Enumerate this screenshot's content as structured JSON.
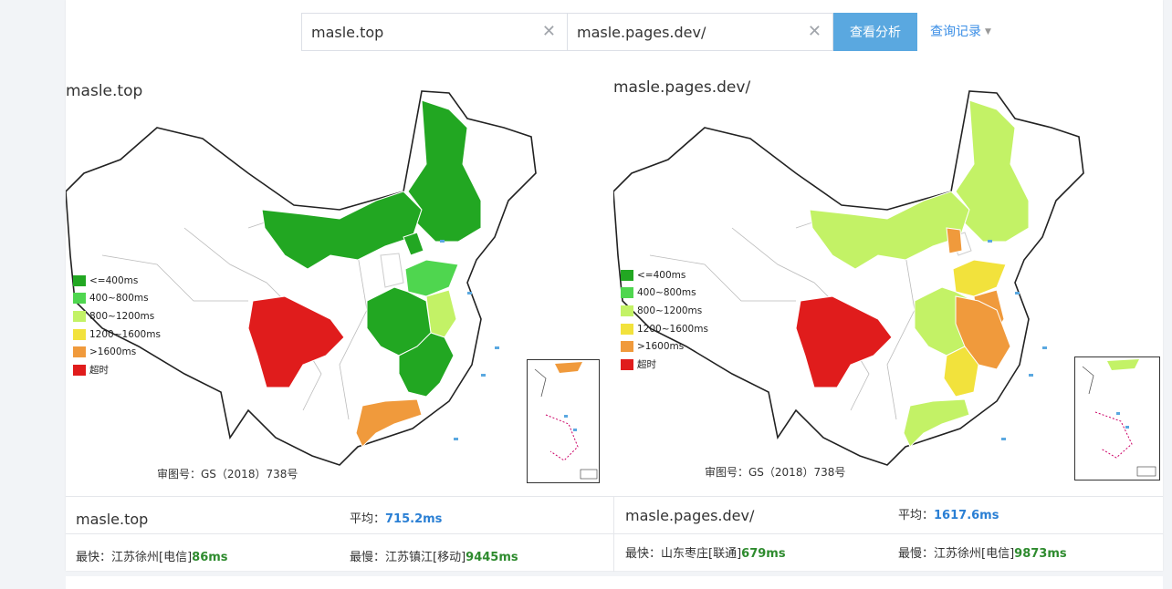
{
  "search": {
    "site_a": "masle.top",
    "site_b": "masle.pages.dev/",
    "clear_icon": "close-icon",
    "analyze_label": "查看分析",
    "history_label": "查询记录"
  },
  "colors": {
    "lt400": "#22a722",
    "400_800": "#4fd64f",
    "800_1200": "#c3f266",
    "1200_1600": "#f2e23c",
    "gt1600": "#f09a3c",
    "timeout": "#e01c1c",
    "button": "#5aa8e0"
  },
  "legend": [
    {
      "label": "<=400ms",
      "color": "#22a722"
    },
    {
      "label": "400~800ms",
      "color": "#4fd64f"
    },
    {
      "label": "800~1200ms",
      "color": "#c3f266"
    },
    {
      "label": "1200~1600ms",
      "color": "#f2e23c"
    },
    {
      "label": ">1600ms",
      "color": "#f09a3c"
    },
    {
      "label": "超时",
      "color": "#e01c1c"
    }
  ],
  "maps": [
    {
      "title": "masle.top",
      "approval": "审图号：GS（2018）738号",
      "regions": {
        "northeast": "#22a722",
        "inner_mongolia": "#22a722",
        "beijing": "#22a722",
        "shandong": "#4fd64f",
        "jiangsu": "#c3f266",
        "central": "#22a722",
        "east": "#22a722",
        "sichuan": "#e01c1c",
        "guangdong": "#f09a3c",
        "shanxi": "#ffffff",
        "inset_top": "#f09a3c"
      }
    },
    {
      "title": "masle.pages.dev/",
      "approval": "审图号：GS（2018）738号",
      "regions": {
        "northeast": "#c3f266",
        "inner_mongolia": "#c3f266",
        "beijing": "#ffffff",
        "shanxi": "#f09a3c",
        "shandong": "#f2e23c",
        "jiangsu": "#f09a3c",
        "central": "#c3f266",
        "east": "#f09a3c",
        "jiangxi": "#f2e23c",
        "sichuan": "#e01c1c",
        "guangdong": "#c3f266",
        "inset_top": "#c3f266"
      }
    }
  ],
  "stats": [
    {
      "name": "masle.top",
      "avg_label": "平均：",
      "avg_value": "715.2ms",
      "fast_label": "最快：",
      "fast_loc": "江苏徐州[电信]",
      "fast_value": "86ms",
      "slow_label": "最慢：",
      "slow_loc": "江苏镇江[移动]",
      "slow_value": "9445ms"
    },
    {
      "name": "masle.pages.dev/",
      "avg_label": "平均：",
      "avg_value": "1617.6ms",
      "fast_label": "最快：",
      "fast_loc": "山东枣庄[联通]",
      "fast_value": "679ms",
      "slow_label": "最慢：",
      "slow_loc": "江苏徐州[电信]",
      "slow_value": "9873ms"
    }
  ]
}
